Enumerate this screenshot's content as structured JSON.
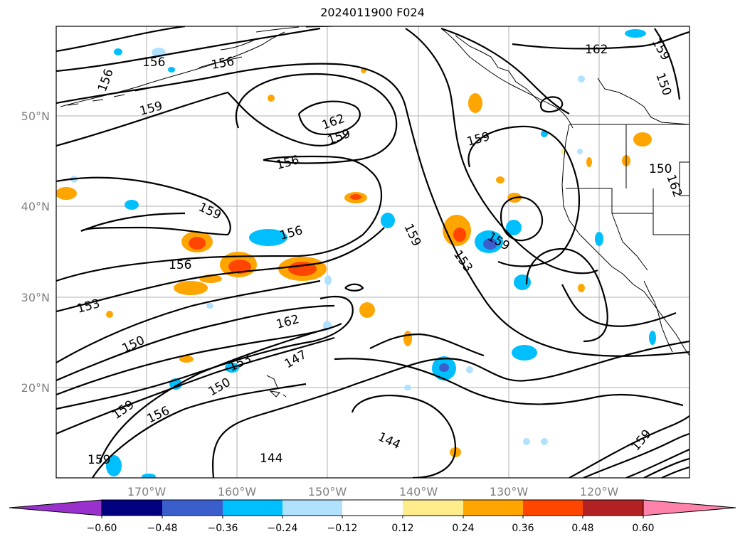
{
  "title": "2024011900 F024",
  "lat_labels": [
    "50°N",
    "40°N",
    "30°N",
    "20°N"
  ],
  "lon_labels": [
    "170°W",
    "160°W",
    "150°W",
    "140°W",
    "130°W",
    "120°W"
  ],
  "contour_labels": [
    "156",
    "156",
    "156",
    "159",
    "162",
    "159",
    "156",
    "159",
    "159",
    "156",
    "156",
    "153",
    "150",
    "153",
    "150",
    "159",
    "156",
    "159",
    "144",
    "144",
    "147",
    "162",
    "153",
    "159",
    "159",
    "162",
    "159",
    "150",
    "150",
    "162",
    "159"
  ],
  "colorbar": {
    "ticks": [
      "−0.60",
      "−0.48",
      "−0.36",
      "−0.24",
      "−0.12",
      "0.12",
      "0.24",
      "0.36",
      "0.48",
      "0.60"
    ],
    "colors": [
      "#9932CC",
      "#000080",
      "#3A5FCD",
      "#00BFFF",
      "#B0E2FF",
      "#FFFFFF",
      "#FFEC8B",
      "#FFA500",
      "#FF4500",
      "#B22222",
      "#FF82AB"
    ]
  }
}
